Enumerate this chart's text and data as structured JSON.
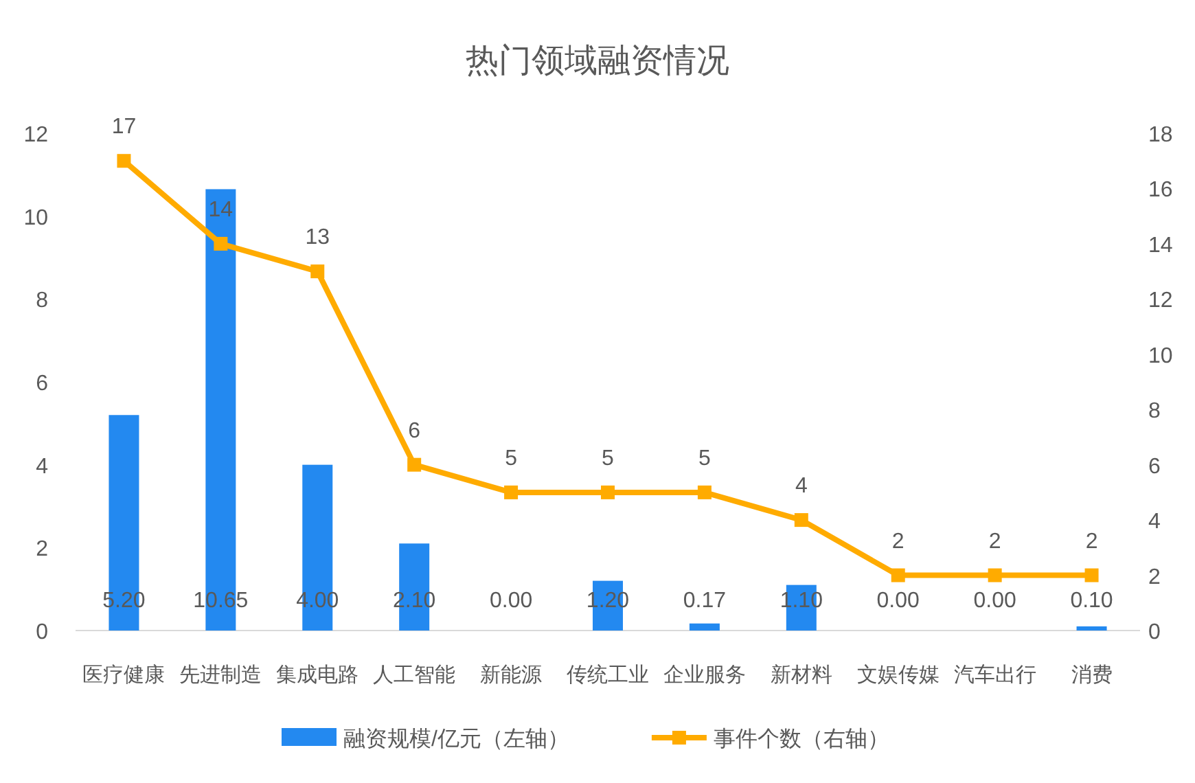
{
  "chart_data": {
    "type": "bar",
    "title": "热门领域融资情况",
    "categories": [
      "医疗健康",
      "先进制造",
      "集成电路",
      "人工智能",
      "新能源",
      "传统工业",
      "企业服务",
      "新材料",
      "文娱传媒",
      "汽车出行",
      "消费"
    ],
    "series": [
      {
        "name": "融资规模/亿元（左轴）",
        "color": "#2389f0",
        "values": [
          5.2,
          10.65,
          4.0,
          2.1,
          0.0,
          1.2,
          0.17,
          1.1,
          0.0,
          0.0,
          0.1
        ],
        "value_labels": [
          "5.20",
          "10.65",
          "4.00",
          "2.10",
          "0.00",
          "1.20",
          "0.17",
          "1.10",
          "0.00",
          "0.00",
          "0.10"
        ]
      },
      {
        "name": "事件个数（右轴）",
        "type": "line",
        "axis": "y2",
        "marker": "square",
        "color": "#ffab00",
        "values": [
          17,
          14,
          13,
          6,
          5,
          5,
          5,
          4,
          2,
          2,
          2
        ],
        "value_labels": [
          "17",
          "14",
          "13",
          "6",
          "5",
          "5",
          "5",
          "4",
          "2",
          "2",
          "2"
        ]
      }
    ],
    "ylim": [
      0,
      12
    ],
    "yticks": [
      0,
      2,
      4,
      6,
      8,
      10,
      12
    ],
    "y2lim": [
      0,
      18
    ],
    "y2ticks": [
      0,
      2,
      4,
      6,
      8,
      10,
      12,
      14,
      16,
      18
    ],
    "legend": "bottom"
  }
}
